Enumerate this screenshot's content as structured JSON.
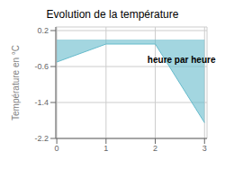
{
  "chart_data": {
    "type": "area",
    "title": "Evolution de la température",
    "ylabel": "Température en °C",
    "x": [
      0,
      1,
      2,
      3
    ],
    "values": [
      -0.5,
      -0.1,
      -0.1,
      -1.85
    ],
    "color": "#66bbcc",
    "xlim": [
      -0.02,
      3.05
    ],
    "ylim": [
      -2.2,
      0.28
    ],
    "xticks": [
      0,
      1,
      2,
      3
    ],
    "yticks": [
      0.2,
      -0.6,
      -1.4,
      -2.2
    ],
    "grid": true,
    "annotations": [
      {
        "text": "heure par heure",
        "x": 1.75,
        "y": -0.45
      }
    ]
  }
}
